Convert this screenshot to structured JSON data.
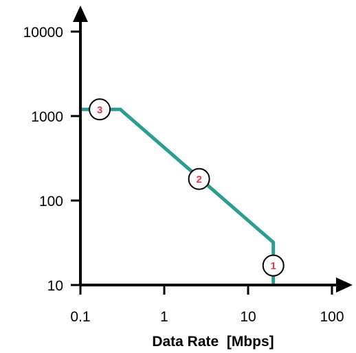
{
  "chart_data": {
    "type": "line",
    "xlabel": "Data Rate  [Mbps]",
    "ylabel": "",
    "x_scale": "log",
    "y_scale": "log",
    "xlim": [
      0.1,
      100
    ],
    "ylim": [
      10,
      10000
    ],
    "x_ticks": [
      "0.1",
      "1",
      "10",
      "100"
    ],
    "y_ticks": [
      "10",
      "100",
      "1000",
      "10000"
    ],
    "grid": false,
    "legend": "none",
    "series": [
      {
        "color": "#2a9d8f",
        "x": [
          0.1,
          0.3,
          0.33,
          20,
          20,
          20
        ],
        "y": [
          1200,
          1200,
          1100,
          32,
          25,
          10
        ]
      }
    ],
    "markers": [
      {
        "label": "1",
        "x": 20,
        "y": 17
      },
      {
        "label": "2",
        "x": 2.6,
        "y": 180
      },
      {
        "label": "3",
        "x": 0.17,
        "y": 1200
      }
    ]
  }
}
